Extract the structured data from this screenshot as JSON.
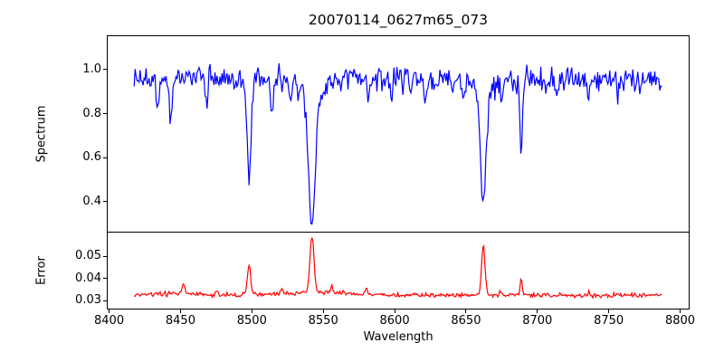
{
  "figure": {
    "background": "#ffffff",
    "text_color": "#000000"
  },
  "chart_data": {
    "type": "line",
    "title": "20070114_0627m65_073",
    "xlabel": "Wavelength",
    "legend": "none",
    "grid": false,
    "xlim": [
      8399,
      8806
    ],
    "x_data_range": [
      8417.5,
      8787.5
    ],
    "x_ticks": [
      {
        "v": 8400,
        "label": "8400"
      },
      {
        "v": 8450,
        "label": "8450"
      },
      {
        "v": 8500,
        "label": "8500"
      },
      {
        "v": 8550,
        "label": "8550"
      },
      {
        "v": 8600,
        "label": "8600"
      },
      {
        "v": 8650,
        "label": "8650"
      },
      {
        "v": 8700,
        "label": "8700"
      },
      {
        "v": 8750,
        "label": "8750"
      },
      {
        "v": 8800,
        "label": "8800"
      }
    ],
    "panels": [
      {
        "name": "spectrum",
        "ylabel": "Spectrum",
        "ylim": [
          0.263,
          1.152
        ],
        "y_ticks": [
          {
            "v": 1.0,
            "label": "1.0"
          },
          {
            "v": 0.8,
            "label": "0.8"
          },
          {
            "v": 0.6,
            "label": "0.6"
          },
          {
            "v": 0.4,
            "label": "0.4"
          }
        ],
        "series": {
          "name": "spectrum-flux",
          "color": "#0000ff",
          "line_width": 1.2,
          "x_start": 8417.5,
          "x_end": 8787.5,
          "x_step": 0.7,
          "baseline": 0.958,
          "noise_sigma": 0.029,
          "seed": 1234567,
          "features": [
            {
              "center": 8434.0,
              "amp": -0.13,
              "sigma": 1.0
            },
            {
              "center": 8443.5,
              "amp": -0.2,
              "sigma": 1.1
            },
            {
              "center": 8462.0,
              "amp": 0.1,
              "sigma": 0.45
            },
            {
              "center": 8468.5,
              "amp": -0.11,
              "sigma": 0.8
            },
            {
              "center": 8498.0,
              "amp": -0.46,
              "sigma": 1.4
            },
            {
              "center": 8514.0,
              "amp": -0.13,
              "sigma": 0.9
            },
            {
              "center": 8527.0,
              "amp": -0.09,
              "sigma": 0.8
            },
            {
              "center": 8542.1,
              "amp": -0.58,
              "sigma": 2.3
            },
            {
              "center": 8542.1,
              "amp": -0.08,
              "sigma": 7.0
            },
            {
              "center": 8582.0,
              "amp": -0.08,
              "sigma": 0.8
            },
            {
              "center": 8598.0,
              "amp": -0.1,
              "sigma": 0.8
            },
            {
              "center": 8611.0,
              "amp": -0.07,
              "sigma": 0.8
            },
            {
              "center": 8621.5,
              "amp": -0.09,
              "sigma": 0.8
            },
            {
              "center": 8648.0,
              "amp": -0.07,
              "sigma": 0.8
            },
            {
              "center": 8662.1,
              "amp": -0.53,
              "sigma": 1.9
            },
            {
              "center": 8662.1,
              "amp": -0.06,
              "sigma": 6.0
            },
            {
              "center": 8674.8,
              "amp": -0.1,
              "sigma": 0.8
            },
            {
              "center": 8688.6,
              "amp": -0.28,
              "sigma": 1.1
            },
            {
              "center": 8713.0,
              "amp": -0.07,
              "sigma": 0.8
            },
            {
              "center": 8736.0,
              "amp": -0.08,
              "sigma": 0.8
            },
            {
              "center": 8757.0,
              "amp": -0.07,
              "sigma": 0.8
            },
            {
              "center": 8772.0,
              "amp": -0.06,
              "sigma": 0.8
            }
          ],
          "absorption_lines_note": "Ca II triplet 8498/8542/8662, minima approx 0.49 / 0.30 / 0.36, Fe 8688 to 0.68, continuum approx 0.96"
        }
      },
      {
        "name": "error",
        "ylabel": "Error",
        "ylim": [
          0.0264,
          0.0608
        ],
        "y_ticks": [
          {
            "v": 0.05,
            "label": "0.05"
          },
          {
            "v": 0.04,
            "label": "0.04"
          },
          {
            "v": 0.03,
            "label": "0.03"
          }
        ],
        "series": {
          "name": "error-curve",
          "color": "#ff0000",
          "line_width": 1.2,
          "x_start": 8417.5,
          "x_end": 8787.5,
          "x_step": 0.7,
          "baseline": 0.0324,
          "noise_sigma": 0.0005,
          "seed": 987654,
          "features": [
            {
              "center": 8445.0,
              "amp": 0.0008,
              "sigma": 20.0
            },
            {
              "center": 8452.0,
              "amp": 0.0035,
              "sigma": 1.0
            },
            {
              "center": 8475.0,
              "amp": 0.002,
              "sigma": 0.8
            },
            {
              "center": 8498.0,
              "amp": 0.014,
              "sigma": 1.1
            },
            {
              "center": 8521.0,
              "amp": 0.002,
              "sigma": 0.8
            },
            {
              "center": 8542.1,
              "amp": 0.0255,
              "sigma": 1.4
            },
            {
              "center": 8545.0,
              "amp": 0.0012,
              "sigma": 25.0
            },
            {
              "center": 8556.0,
              "amp": 0.003,
              "sigma": 0.8
            },
            {
              "center": 8580.0,
              "amp": 0.0025,
              "sigma": 0.8
            },
            {
              "center": 8662.1,
              "amp": 0.0222,
              "sigma": 1.2
            },
            {
              "center": 8674.0,
              "amp": 0.002,
              "sigma": 0.7
            },
            {
              "center": 8688.6,
              "amp": 0.0072,
              "sigma": 0.8
            },
            {
              "center": 8736.0,
              "amp": 0.0015,
              "sigma": 0.7
            }
          ],
          "peaks_note": "error baseline approx 0.032-0.033; peaks approx 0.047 @8498, 0.0585 @8542, 0.055 @8662, 0.040 @8688"
        }
      }
    ]
  }
}
